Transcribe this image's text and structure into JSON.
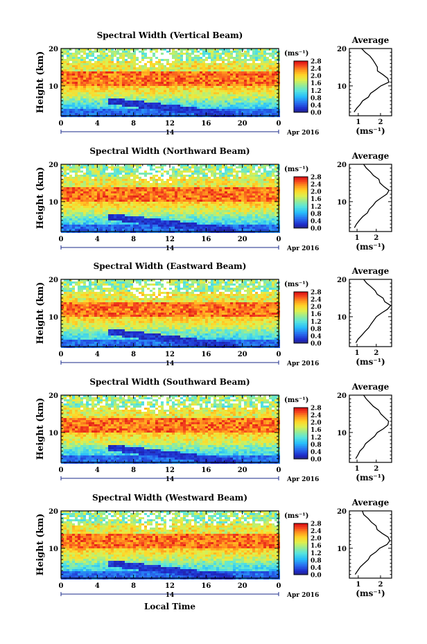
{
  "chart_data": [
    {
      "type": "heatmap",
      "title": "Spectral Width (Vertical Beam)",
      "ylabel": "Height (km)",
      "avg_title": "Average",
      "avg_xlabel": "(ms⁻¹)",
      "avg_xticks": [
        "1",
        "2"
      ],
      "avg_xlim": [
        0.6,
        2.5
      ],
      "avg_profile": [
        [
          0.85,
          3
        ],
        [
          0.95,
          4
        ],
        [
          1.05,
          5
        ],
        [
          1.2,
          6
        ],
        [
          1.4,
          7
        ],
        [
          1.6,
          8
        ],
        [
          1.8,
          9
        ],
        [
          2.05,
          10
        ],
        [
          2.35,
          11
        ],
        [
          2.3,
          12
        ],
        [
          2.1,
          13
        ],
        [
          1.9,
          14
        ],
        [
          1.85,
          15
        ],
        [
          1.7,
          16
        ],
        [
          1.6,
          17
        ],
        [
          1.5,
          18
        ],
        [
          1.3,
          19
        ],
        [
          1.2,
          20
        ]
      ]
    },
    {
      "type": "heatmap",
      "title": "Spectral Width (Northward Beam)",
      "ylabel": "Height (km)",
      "avg_title": "Average",
      "avg_xlabel": "(ms⁻¹)",
      "avg_xticks": [
        "1",
        "2"
      ],
      "avg_xlim": [
        0.6,
        2.8
      ],
      "avg_profile": [
        [
          0.9,
          3
        ],
        [
          1.0,
          4
        ],
        [
          1.15,
          5
        ],
        [
          1.3,
          6
        ],
        [
          1.5,
          7
        ],
        [
          1.65,
          8
        ],
        [
          1.8,
          9
        ],
        [
          2.0,
          10
        ],
        [
          2.3,
          11
        ],
        [
          2.6,
          12
        ],
        [
          2.7,
          13
        ],
        [
          2.4,
          14
        ],
        [
          2.2,
          15
        ],
        [
          2.1,
          16
        ],
        [
          1.9,
          17
        ],
        [
          1.7,
          18
        ],
        [
          1.5,
          19
        ],
        [
          1.3,
          20
        ]
      ]
    },
    {
      "type": "heatmap",
      "title": "Spectral Width (Eastward Beam)",
      "ylabel": "Height (km)",
      "avg_title": "Average",
      "avg_xlabel": "(ms⁻¹)",
      "avg_xticks": [
        "1",
        "2"
      ],
      "avg_xlim": [
        0.6,
        2.8
      ],
      "avg_profile": [
        [
          0.95,
          3
        ],
        [
          1.1,
          4
        ],
        [
          1.2,
          5
        ],
        [
          1.4,
          6
        ],
        [
          1.55,
          7
        ],
        [
          1.7,
          8
        ],
        [
          1.85,
          9
        ],
        [
          2.0,
          10
        ],
        [
          2.3,
          11
        ],
        [
          2.6,
          12
        ],
        [
          2.7,
          13
        ],
        [
          2.4,
          14
        ],
        [
          2.3,
          15
        ],
        [
          2.1,
          16
        ],
        [
          1.9,
          17
        ],
        [
          1.7,
          18
        ],
        [
          1.5,
          19
        ],
        [
          1.3,
          20
        ]
      ]
    },
    {
      "type": "heatmap",
      "title": "Spectral Width (Southward Beam)",
      "ylabel": "Height (km)",
      "avg_title": "Average",
      "avg_xlabel": "(ms⁻¹)",
      "avg_xticks": [
        "1",
        "2"
      ],
      "avg_xlim": [
        0.6,
        2.8
      ],
      "avg_profile": [
        [
          0.9,
          3
        ],
        [
          1.05,
          4
        ],
        [
          1.2,
          5
        ],
        [
          1.35,
          6
        ],
        [
          1.5,
          7
        ],
        [
          1.7,
          8
        ],
        [
          1.9,
          9
        ],
        [
          2.1,
          10
        ],
        [
          2.35,
          11
        ],
        [
          2.6,
          12
        ],
        [
          2.7,
          13
        ],
        [
          2.45,
          14
        ],
        [
          2.2,
          15
        ],
        [
          2.1,
          16
        ],
        [
          1.9,
          17
        ],
        [
          1.7,
          18
        ],
        [
          1.5,
          19
        ],
        [
          1.3,
          20
        ]
      ]
    },
    {
      "type": "heatmap",
      "title": "Spectral Width (Westward Beam)",
      "ylabel": "Height (km)",
      "avg_title": "Average",
      "avg_xlabel": "(ms⁻¹)",
      "avg_xticks": [
        "1",
        "2"
      ],
      "avg_xlim": [
        0.6,
        2.5
      ],
      "avg_profile": [
        [
          0.9,
          3
        ],
        [
          1.0,
          4
        ],
        [
          1.15,
          5
        ],
        [
          1.3,
          6
        ],
        [
          1.45,
          7
        ],
        [
          1.6,
          8
        ],
        [
          1.8,
          9
        ],
        [
          2.0,
          10
        ],
        [
          2.25,
          11
        ],
        [
          2.4,
          12
        ],
        [
          2.3,
          13
        ],
        [
          2.05,
          14
        ],
        [
          1.9,
          15
        ],
        [
          1.8,
          16
        ],
        [
          1.6,
          17
        ],
        [
          1.4,
          18
        ],
        [
          1.3,
          19
        ],
        [
          1.2,
          20
        ]
      ]
    }
  ],
  "common": {
    "x_ticks": [
      "0",
      "4",
      "8",
      "12",
      "16",
      "20",
      "0"
    ],
    "x_range": [
      0,
      24
    ],
    "y_ticks": [
      "10",
      "20"
    ],
    "y_range": [
      2,
      20
    ],
    "date_day": "14",
    "date_label": "Apr 2016",
    "colorbar_unit": "(ms⁻¹)",
    "colorbar_ticks": [
      "2.8",
      "2.4",
      "2.0",
      "1.6",
      "1.2",
      "0.8",
      "0.4",
      "0.0"
    ],
    "colorbar_range": [
      0.0,
      2.8
    ],
    "xlabel": "Local Time"
  }
}
